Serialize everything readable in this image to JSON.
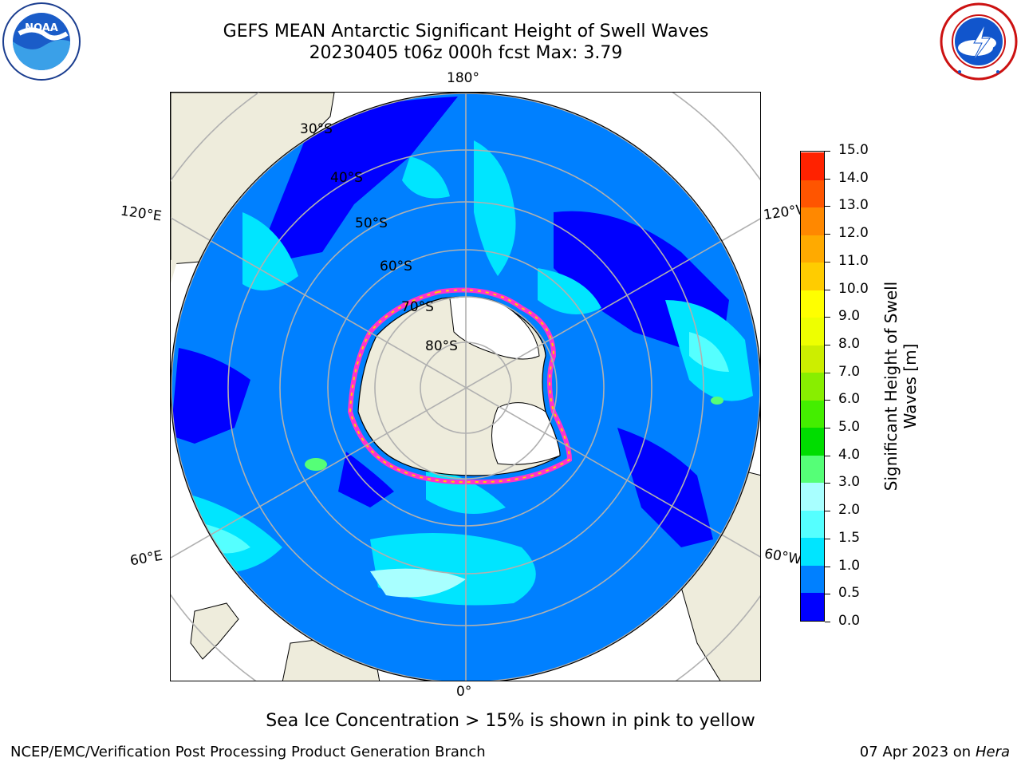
{
  "header": {
    "title_line1": "GEFS MEAN Antarctic Significant Height of Swell Waves",
    "title_line2": "20230405 t06z 000h fcst   Max: 3.79"
  },
  "logos": {
    "left": "noaa-logo",
    "right": "nws-logo",
    "left_ring_text": "NATIONAL OCEANIC AND ATMOSPHERIC ADMINISTRATION · U.S. DEPARTMENT OF COMMERCE",
    "left_center_text": "NOAA",
    "right_ring_text": "NATIONAL WEATHER SERVICE"
  },
  "map": {
    "projection": "south-polar-stereographic",
    "longitude_labels": [
      "180°",
      "120°E",
      "120°W",
      "60°E",
      "60°W",
      "0°"
    ],
    "latitude_labels": [
      "30°S",
      "40°S",
      "50°S",
      "60°S",
      "70°S",
      "80°S"
    ],
    "ocean_base_color": "#0080ff",
    "land_color": "#eeecdc",
    "ice_sheet_color": "#ffffff",
    "sea_ice_edge_colors": [
      "#ff33cc",
      "#ffcc00"
    ]
  },
  "colorbar": {
    "label_line1": "Significant Height of Swell",
    "label_line2": "Waves [m]",
    "ticks": [
      "0.0",
      "0.5",
      "1.0",
      "1.5",
      "2.0",
      "3.0",
      "4.0",
      "5.0",
      "6.0",
      "7.0",
      "8.0",
      "9.0",
      "10.0",
      "11.0",
      "12.0",
      "13.0",
      "14.0",
      "15.0"
    ],
    "colors": [
      "#0000ff",
      "#0080ff",
      "#00e5ff",
      "#55ffff",
      "#a8ffff",
      "#55ff77",
      "#00dd00",
      "#44ee00",
      "#88ee00",
      "#ccee00",
      "#eeff00",
      "#ffff00",
      "#ffcc00",
      "#ffaa00",
      "#ff8800",
      "#ff5500",
      "#ff2200"
    ]
  },
  "footer": {
    "ice_note": "Sea Ice Concentration > 15% is shown in pink to yellow",
    "left": "NCEP/EMC/Verification Post Processing Product Generation Branch",
    "right_date": "07 Apr 2023 on ",
    "right_machine": "Hera"
  }
}
